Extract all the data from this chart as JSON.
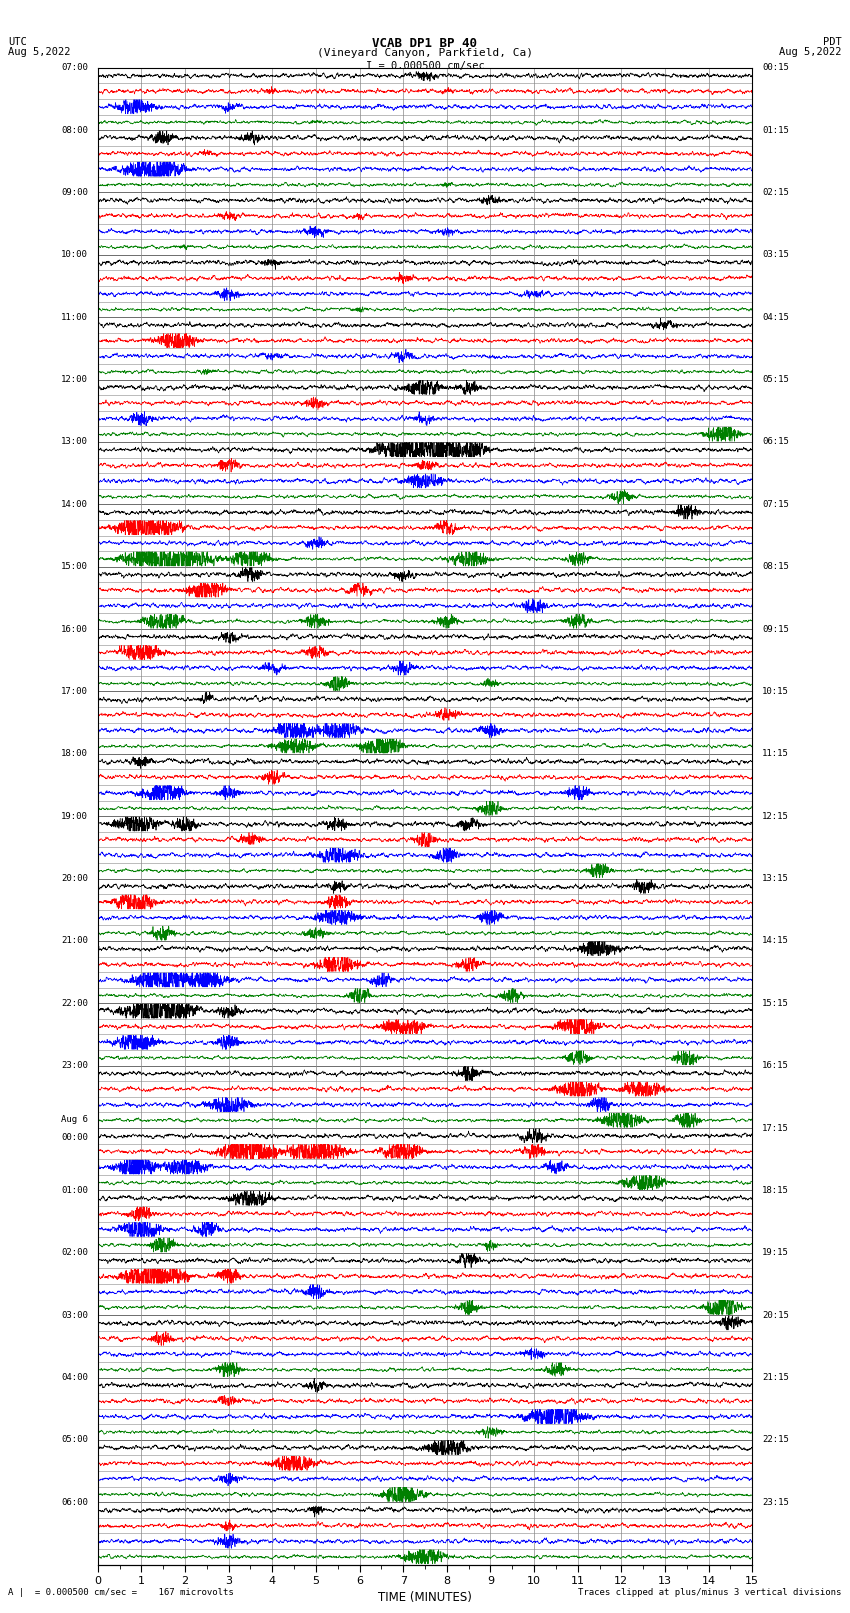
{
  "title_line1": "VCAB DP1 BP 40",
  "title_line2": "(Vineyard Canyon, Parkfield, Ca)",
  "scale_label": "I = 0.000500 cm/sec",
  "utc_label": "UTC\nAug 5,2022",
  "pdt_label": "PDT\nAug 5,2022",
  "footer_left": "A |  = 0.000500 cm/sec =    167 microvolts",
  "footer_right": "Traces clipped at plus/minus 3 vertical divisions",
  "xlabel": "TIME (MINUTES)",
  "xlim": [
    0,
    15
  ],
  "xticks": [
    0,
    1,
    2,
    3,
    4,
    5,
    6,
    7,
    8,
    9,
    10,
    11,
    12,
    13,
    14,
    15
  ],
  "left_times": [
    "07:00",
    "08:00",
    "09:00",
    "10:00",
    "11:00",
    "12:00",
    "13:00",
    "14:00",
    "15:00",
    "16:00",
    "17:00",
    "18:00",
    "19:00",
    "20:00",
    "21:00",
    "22:00",
    "23:00",
    "Aug 6\n00:00",
    "01:00",
    "02:00",
    "03:00",
    "04:00",
    "05:00",
    "06:00"
  ],
  "right_times": [
    "00:15",
    "01:15",
    "02:15",
    "03:15",
    "04:15",
    "05:15",
    "06:15",
    "07:15",
    "08:15",
    "09:15",
    "10:15",
    "11:15",
    "12:15",
    "13:15",
    "14:15",
    "15:15",
    "16:15",
    "17:15",
    "18:15",
    "19:15",
    "20:15",
    "21:15",
    "22:15",
    "23:15"
  ],
  "n_rows": 24,
  "traces_per_row": 4,
  "colors": [
    "black",
    "red",
    "blue",
    "green"
  ],
  "background_color": "white",
  "fig_width": 8.5,
  "fig_height": 16.13,
  "noise_seed": 42
}
